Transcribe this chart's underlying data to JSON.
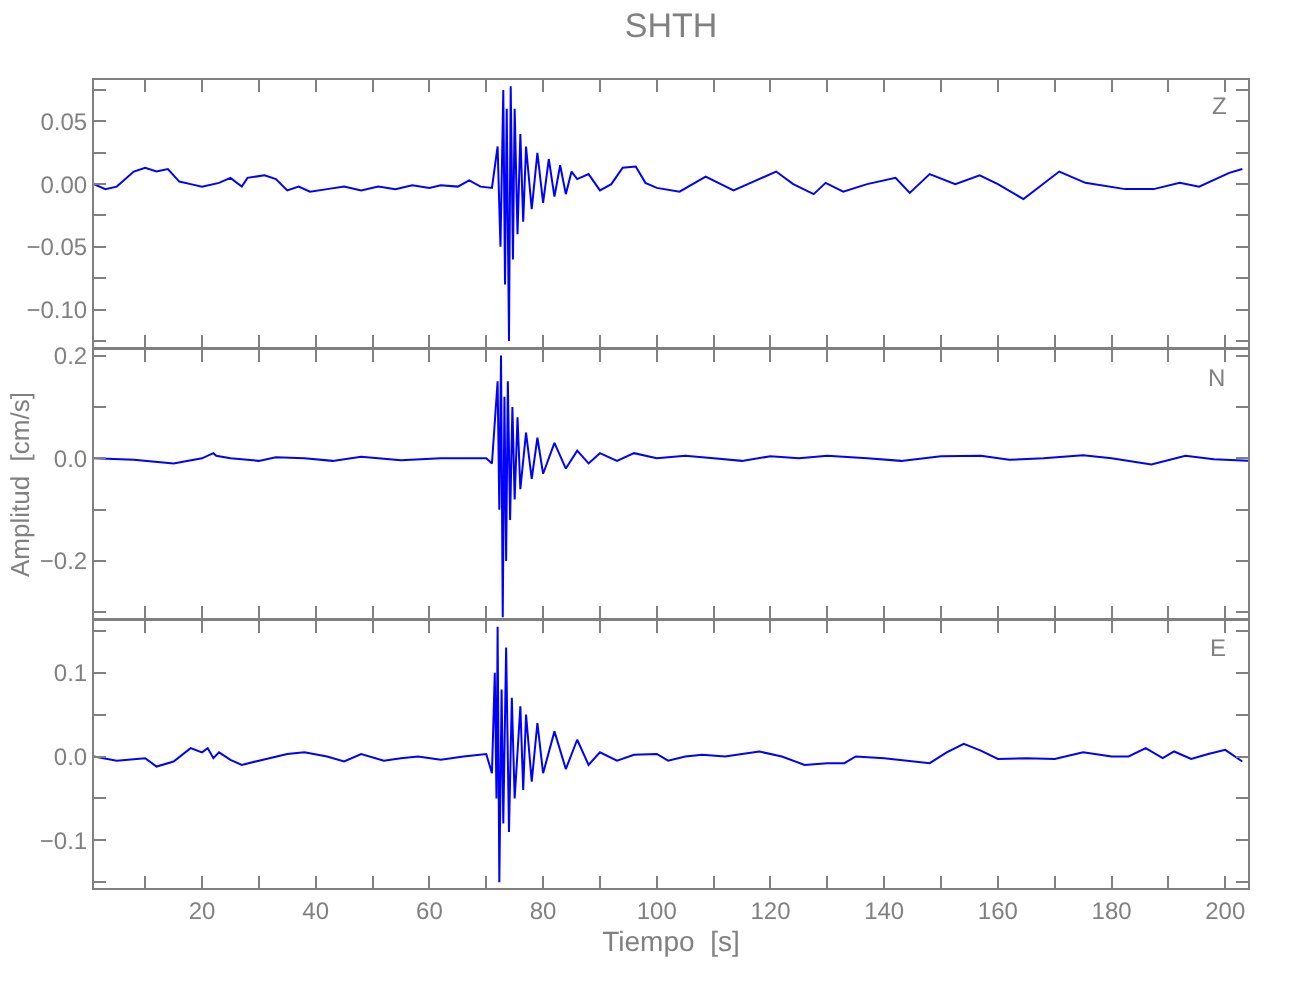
{
  "chart_data": [
    {
      "type": "line",
      "title": "SHTH",
      "color": "#0000ff",
      "annotations": [
        "Z"
      ],
      "tick_labels": "y",
      "x": [
        1,
        3,
        5,
        8,
        10,
        12,
        14,
        16,
        18,
        20,
        23,
        25,
        27,
        28,
        31,
        33,
        35,
        37,
        39,
        42,
        45,
        48,
        51,
        54,
        57,
        60,
        62,
        65,
        67,
        69,
        71,
        72,
        72.5,
        73,
        73.3,
        73.6,
        74,
        74.3,
        74.7,
        75,
        75.5,
        76,
        76.5,
        77,
        78,
        79,
        80,
        81,
        82,
        83,
        84,
        85,
        86,
        88,
        90,
        92,
        94,
        96.3,
        98,
        100,
        104,
        108.6,
        113.5,
        117,
        121,
        124,
        127.6,
        129.7,
        132.8,
        137,
        142,
        144.5,
        148,
        152.5,
        156.8,
        160,
        164.5,
        170.8,
        175.4,
        182.4,
        187.4,
        192,
        195.4,
        200.7,
        203
      ],
      "values": [
        0.0,
        -0.004,
        -0.002,
        0.01,
        0.013,
        0.01,
        0.012,
        0.002,
        0.0,
        -0.002,
        0.001,
        0.005,
        -0.002,
        0.005,
        0.007,
        0.004,
        -0.005,
        -0.002,
        -0.006,
        -0.004,
        -0.002,
        -0.005,
        -0.002,
        -0.004,
        -0.001,
        -0.003,
        -0.001,
        -0.002,
        0.003,
        -0.002,
        -0.003,
        0.03,
        -0.05,
        0.075,
        -0.08,
        0.06,
        -0.125,
        0.078,
        -0.06,
        0.06,
        -0.04,
        0.04,
        -0.03,
        0.03,
        -0.02,
        0.025,
        -0.015,
        0.02,
        -0.01,
        0.015,
        -0.008,
        0.01,
        0.004,
        0.008,
        -0.005,
        0.0,
        0.013,
        0.014,
        0.001,
        -0.003,
        -0.006,
        0.006,
        -0.005,
        0.002,
        0.01,
        0.0,
        -0.008,
        0.001,
        -0.006,
        0.0,
        0.005,
        -0.007,
        0.008,
        0.0,
        0.007,
        0.0,
        -0.012,
        0.01,
        0.001,
        -0.004,
        -0.004,
        0.001,
        -0.002,
        0.009,
        0.012
      ],
      "xlim": [
        1,
        204
      ],
      "ylim": [
        -0.13,
        0.083
      ],
      "xticks": [
        {
          "value": 10,
          "label": null
        },
        {
          "value": 20,
          "label": null
        },
        {
          "value": 30,
          "label": null
        },
        {
          "value": 40,
          "label": null
        },
        {
          "value": 50,
          "label": null
        },
        {
          "value": 60,
          "label": null
        },
        {
          "value": 70,
          "label": null
        },
        {
          "value": 80,
          "label": null
        },
        {
          "value": 90,
          "label": null
        },
        {
          "value": 100,
          "label": null
        },
        {
          "value": 110,
          "label": null
        },
        {
          "value": 120,
          "label": null
        },
        {
          "value": 130,
          "label": null
        },
        {
          "value": 140,
          "label": null
        },
        {
          "value": 150,
          "label": null
        },
        {
          "value": 160,
          "label": null
        },
        {
          "value": 170,
          "label": null
        },
        {
          "value": 180,
          "label": null
        },
        {
          "value": 190,
          "label": null
        },
        {
          "value": 200,
          "label": null
        }
      ],
      "yticks": [
        {
          "value": 0.075,
          "label": null
        },
        {
          "value": 0.05,
          "label": "0.05"
        },
        {
          "value": 0.025,
          "label": null
        },
        {
          "value": 0,
          "label": "0.00"
        },
        {
          "value": -0.025,
          "label": null
        },
        {
          "value": -0.05,
          "label": "−0.05"
        },
        {
          "value": -0.075,
          "label": null
        },
        {
          "value": -0.1,
          "label": "−0.10"
        },
        {
          "value": -0.125,
          "label": null
        }
      ]
    },
    {
      "type": "line",
      "ylabel": "Amplitud  [cm/s]",
      "color": "#0000ff",
      "annotations": [
        "N"
      ],
      "tick_labels": "y",
      "x": [
        1,
        8,
        15,
        20,
        22,
        22.5,
        25,
        30,
        33,
        38,
        43,
        48,
        55,
        62,
        70,
        71,
        72,
        72.3,
        72.6,
        72.9,
        73.2,
        73.5,
        73.8,
        74.2,
        74.6,
        75,
        75.5,
        76,
        77,
        78,
        79,
        80,
        82,
        84,
        86,
        88,
        90,
        93,
        96,
        100,
        105,
        110,
        115,
        120,
        125,
        130,
        137,
        143,
        150,
        157,
        162,
        168,
        175,
        180,
        187,
        193,
        198,
        204
      ],
      "values": [
        0.0,
        -0.003,
        -0.01,
        0.0,
        0.01,
        0.005,
        0.0,
        -0.005,
        0.002,
        0.0,
        -0.005,
        0.003,
        -0.004,
        0.0,
        0.0,
        -0.01,
        0.15,
        -0.1,
        0.2,
        -0.31,
        0.12,
        -0.2,
        0.15,
        -0.12,
        0.1,
        -0.08,
        0.08,
        -0.06,
        0.05,
        -0.04,
        0.04,
        -0.03,
        0.03,
        -0.02,
        0.015,
        -0.01,
        0.01,
        -0.005,
        0.01,
        0.0,
        0.005,
        0.0,
        -0.005,
        0.004,
        0.0,
        0.005,
        0.0,
        -0.005,
        0.004,
        0.005,
        -0.003,
        0.0,
        0.006,
        0.0,
        -0.012,
        0.005,
        -0.002,
        -0.005
      ],
      "xlim": [
        1,
        204
      ],
      "ylim": [
        -0.31,
        0.21
      ],
      "xticks": [
        {
          "value": 10,
          "label": null
        },
        {
          "value": 20,
          "label": null
        },
        {
          "value": 30,
          "label": null
        },
        {
          "value": 40,
          "label": null
        },
        {
          "value": 50,
          "label": null
        },
        {
          "value": 60,
          "label": null
        },
        {
          "value": 70,
          "label": null
        },
        {
          "value": 80,
          "label": null
        },
        {
          "value": 90,
          "label": null
        },
        {
          "value": 100,
          "label": null
        },
        {
          "value": 110,
          "label": null
        },
        {
          "value": 120,
          "label": null
        },
        {
          "value": 130,
          "label": null
        },
        {
          "value": 140,
          "label": null
        },
        {
          "value": 150,
          "label": null
        },
        {
          "value": 160,
          "label": null
        },
        {
          "value": 170,
          "label": null
        },
        {
          "value": 180,
          "label": null
        },
        {
          "value": 190,
          "label": null
        },
        {
          "value": 200,
          "label": null
        }
      ],
      "yticks": [
        {
          "value": 0.2,
          "label": "0.2"
        },
        {
          "value": 0.1,
          "label": null
        },
        {
          "value": 0,
          "label": "0.0"
        },
        {
          "value": -0.1,
          "label": null
        },
        {
          "value": -0.2,
          "label": "−0.2"
        },
        {
          "value": -0.3,
          "label": null
        }
      ]
    },
    {
      "type": "line",
      "xlabel": "Tiempo  [s]",
      "color": "#0000ff",
      "annotations": [
        "E"
      ],
      "x": [
        1,
        5,
        10,
        12,
        15,
        18,
        20,
        21,
        22,
        23,
        25,
        27,
        30,
        35,
        38,
        42,
        45,
        48,
        52,
        55,
        58,
        62,
        66,
        70,
        71,
        71.5,
        71.8,
        72,
        72.3,
        72.7,
        73,
        73.5,
        74,
        74.5,
        75,
        76,
        76.5,
        77,
        78,
        79,
        80,
        82,
        84,
        86,
        88,
        90,
        93,
        96,
        100,
        102,
        105,
        108,
        112,
        118,
        122,
        126,
        130,
        133,
        135,
        140,
        148,
        151,
        154,
        157,
        160,
        165,
        170,
        175,
        180,
        183,
        186,
        189,
        191,
        194,
        197,
        200,
        203
      ],
      "values": [
        0.0,
        -0.005,
        -0.002,
        -0.012,
        -0.006,
        0.01,
        0.005,
        0.01,
        -0.002,
        0.005,
        -0.004,
        -0.01,
        -0.005,
        0.003,
        0.005,
        0.0,
        -0.006,
        0.003,
        -0.005,
        -0.002,
        0.0,
        -0.004,
        0.0,
        0.003,
        -0.02,
        0.1,
        -0.05,
        0.155,
        -0.15,
        0.08,
        -0.08,
        0.13,
        -0.09,
        0.07,
        -0.05,
        0.06,
        -0.04,
        0.05,
        -0.03,
        0.04,
        -0.02,
        0.03,
        -0.015,
        0.02,
        -0.01,
        0.005,
        -0.005,
        0.002,
        0.003,
        -0.005,
        0.0,
        0.002,
        0.0,
        0.006,
        0.0,
        -0.01,
        -0.008,
        -0.008,
        0.0,
        -0.002,
        -0.008,
        0.005,
        0.015,
        0.007,
        -0.003,
        -0.002,
        -0.003,
        0.005,
        0.0,
        0.0,
        0.01,
        -0.002,
        0.006,
        -0.003,
        0.003,
        0.008,
        -0.006
      ],
      "xlim": [
        1,
        204
      ],
      "ylim": [
        -0.157,
        0.162
      ],
      "xticks": [
        {
          "value": 10,
          "label": null
        },
        {
          "value": 20,
          "label": "20"
        },
        {
          "value": 30,
          "label": null
        },
        {
          "value": 40,
          "label": "40"
        },
        {
          "value": 50,
          "label": null
        },
        {
          "value": 60,
          "label": "60"
        },
        {
          "value": 70,
          "label": null
        },
        {
          "value": 80,
          "label": "80"
        },
        {
          "value": 90,
          "label": null
        },
        {
          "value": 100,
          "label": "100"
        },
        {
          "value": 110,
          "label": null
        },
        {
          "value": 120,
          "label": "120"
        },
        {
          "value": 130,
          "label": null
        },
        {
          "value": 140,
          "label": "140"
        },
        {
          "value": 150,
          "label": null
        },
        {
          "value": 160,
          "label": "160"
        },
        {
          "value": 170,
          "label": null
        },
        {
          "value": 180,
          "label": "180"
        },
        {
          "value": 190,
          "label": null
        },
        {
          "value": 200,
          "label": "200"
        }
      ],
      "yticks": [
        {
          "value": 0.15,
          "label": null
        },
        {
          "value": 0.1,
          "label": "0.1"
        },
        {
          "value": 0.05,
          "label": null
        },
        {
          "value": 0,
          "label": "0.0"
        },
        {
          "value": -0.05,
          "label": null
        },
        {
          "value": -0.1,
          "label": "−0.1"
        },
        {
          "value": -0.15,
          "label": null
        }
      ]
    }
  ]
}
